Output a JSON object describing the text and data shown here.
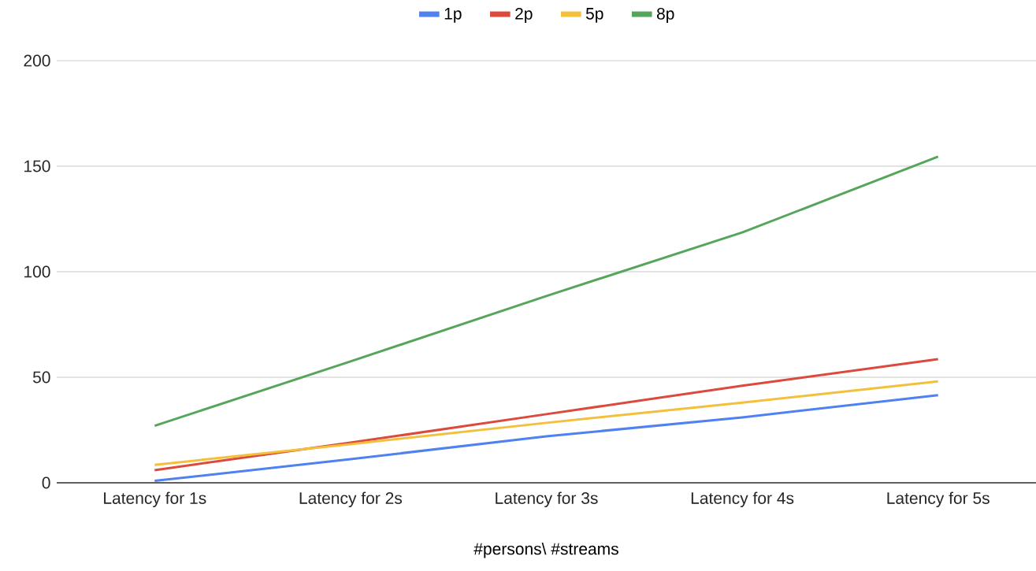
{
  "chart_data": {
    "type": "line",
    "xlabel": "#persons\\ #streams",
    "categories": [
      "Latency for 1s",
      "Latency for 2s",
      "Latency for 3s",
      "Latency for 4s",
      "Latency for 5s"
    ],
    "series": [
      {
        "name": "1p",
        "color": "#4f81f0",
        "values": [
          0.9,
          11.2,
          22,
          31,
          41.5
        ]
      },
      {
        "name": "2p",
        "color": "#db4a3c",
        "values": [
          6,
          19,
          32.5,
          46,
          58.6
        ]
      },
      {
        "name": "5p",
        "color": "#f4c03c",
        "values": [
          8.5,
          18.3,
          28.4,
          38,
          48
        ]
      },
      {
        "name": "8p",
        "color": "#55a65a",
        "values": [
          27,
          57.5,
          88.5,
          118.6,
          154.5
        ]
      }
    ],
    "ylim": [
      0,
      200
    ],
    "yticks": [
      0,
      50,
      100,
      150,
      200
    ],
    "grid": "y",
    "legend": "top"
  }
}
